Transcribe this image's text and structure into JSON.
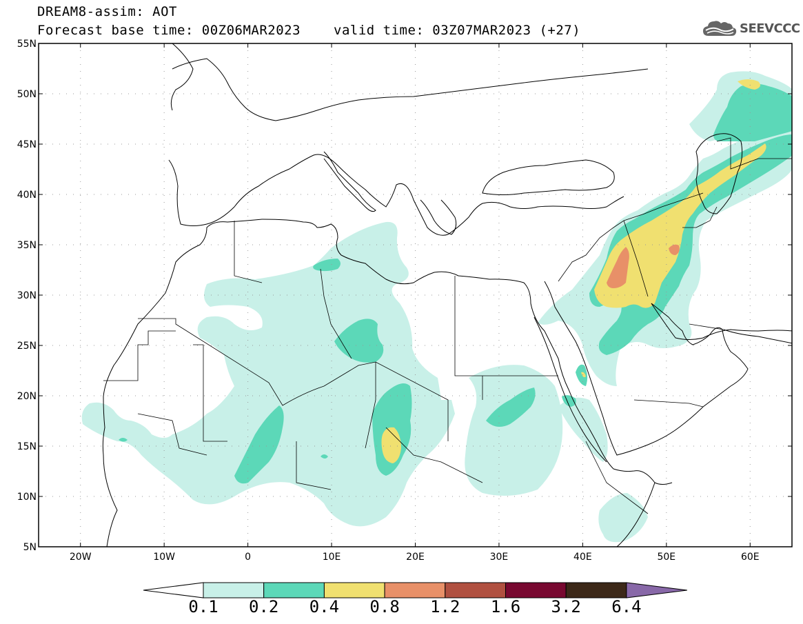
{
  "title": {
    "line1": "DREAM8-assim: AOT",
    "line2": "Forecast base time: 00Z06MAR2023",
    "valid": "valid time: 03Z07MAR2023 (+27)"
  },
  "logo": {
    "text": "SEEVCCC",
    "icon": "cloud-icon"
  },
  "map": {
    "lon_range": [
      -25,
      65
    ],
    "lat_range": [
      5,
      55
    ],
    "lat_ticks": [
      "5N",
      "10N",
      "15N",
      "20N",
      "25N",
      "30N",
      "35N",
      "40N",
      "45N",
      "50N",
      "55N"
    ],
    "lon_ticks": [
      "20W",
      "10W",
      "0",
      "10E",
      "20E",
      "30E",
      "40E",
      "50E",
      "60E"
    ],
    "grid": "dotted"
  },
  "colorbar": {
    "labels": [
      "0.1",
      "0.2",
      "0.4",
      "0.8",
      "1.2",
      "1.6",
      "3.2",
      "6.4"
    ],
    "colors": [
      "#c8f0e8",
      "#5cd8b8",
      "#f0e070",
      "#e89068",
      "#b05040",
      "#780830",
      "#3c2818",
      "#8868a8"
    ]
  }
}
